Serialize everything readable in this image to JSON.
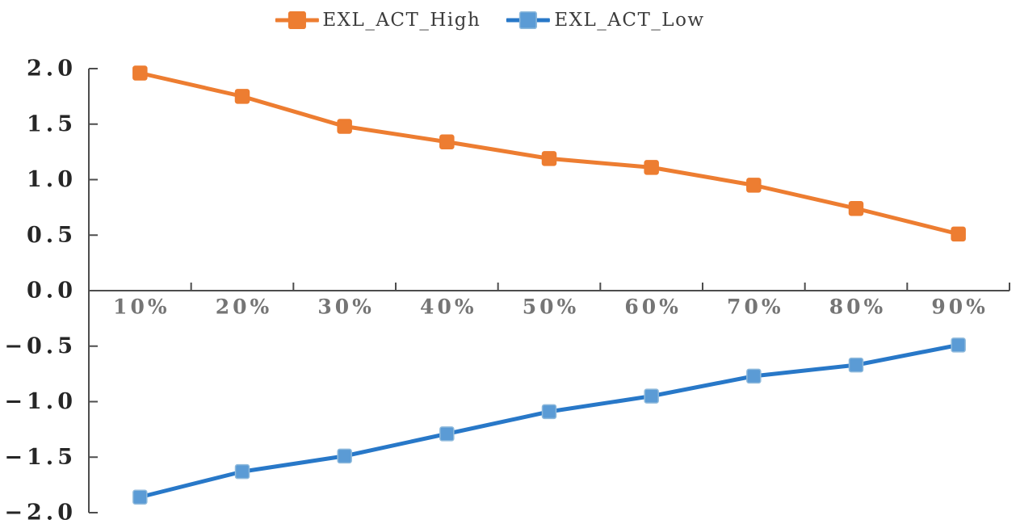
{
  "chart_data": {
    "type": "line",
    "title": "",
    "xlabel": "",
    "ylabel": "",
    "categories": [
      "10%",
      "20%",
      "30%",
      "40%",
      "50%",
      "60%",
      "70%",
      "80%",
      "90%"
    ],
    "series": [
      {
        "name": "EXL_ACT_High",
        "line_color": "#ED7D31",
        "marker_color": "#ED7D31",
        "marker_edge_color": "#ED7D31",
        "marker": "square",
        "values": [
          1.96,
          1.75,
          1.48,
          1.34,
          1.19,
          1.11,
          0.95,
          0.74,
          0.51
        ]
      },
      {
        "name": "EXL_ACT_Low",
        "line_color": "#2878C8",
        "marker_color": "#5B9BD5",
        "marker_edge_color": "#8FBADC",
        "marker": "square",
        "values": [
          -1.86,
          -1.63,
          -1.49,
          -1.29,
          -1.09,
          -0.95,
          -0.77,
          -0.67,
          -0.49
        ]
      }
    ],
    "yticks": {
      "values": [
        2,
        1.5,
        1,
        0.5,
        0,
        -0.5,
        -1,
        -1.5,
        -2
      ],
      "labels": [
        "2.0",
        "1.5",
        "1.0",
        "0.5",
        "0.0",
        "−0.5",
        "−1.0",
        "−1.5",
        "−2.0"
      ]
    },
    "ylim": [
      -2,
      2
    ],
    "grid": false,
    "legend_position": "top-center",
    "axis_color": "#4d4d4d",
    "y_tick_label_color": "#262626",
    "x_tick_label_color": "#757575"
  }
}
